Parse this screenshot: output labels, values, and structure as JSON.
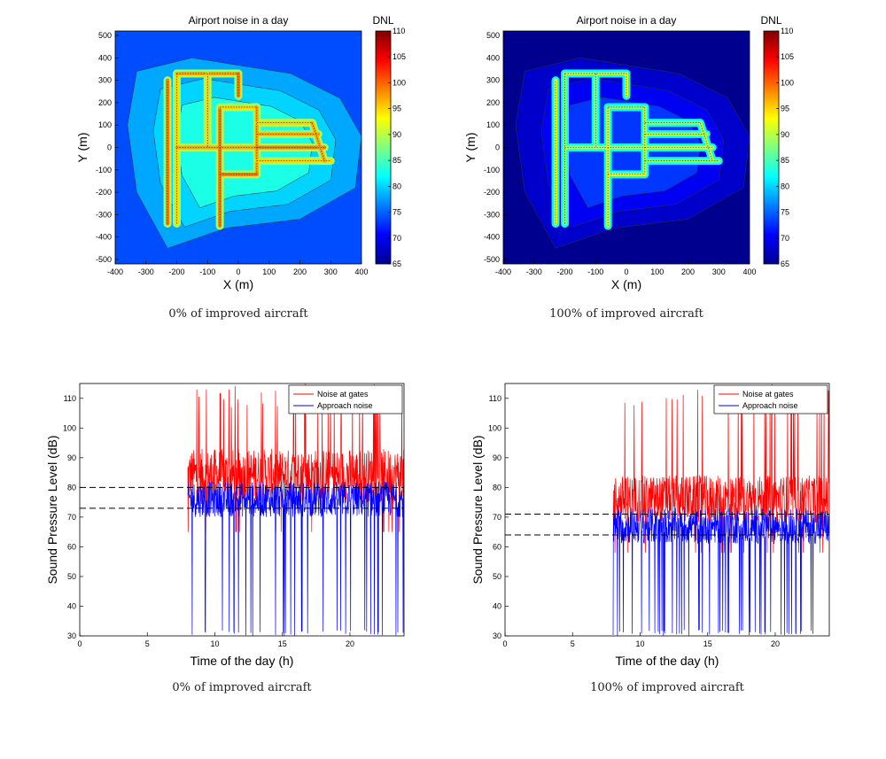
{
  "chart_data": [
    {
      "type": "heatmap",
      "title": "Airport noise in a day",
      "xlabel": "X (m)",
      "ylabel": "Y (m)",
      "xlim": [
        -400,
        400
      ],
      "ylim": [
        -520,
        520
      ],
      "xticks": [
        "-400",
        "-300",
        "-200",
        "-100",
        "0",
        "100",
        "200",
        "300",
        "400"
      ],
      "yticks": [
        "500",
        "400",
        "300",
        "200",
        "100",
        "0",
        "-100",
        "-200",
        "-300",
        "-400",
        "-500"
      ],
      "colorbar": {
        "label": "DNL",
        "min": 65,
        "max": 110,
        "ticks": [
          "110",
          "105",
          "100",
          "95",
          "90",
          "85",
          "80",
          "75",
          "70",
          "65"
        ]
      },
      "background_level_dnl": 80,
      "taxiway_level_dnl": 95,
      "caption": "0% of improved aircraft"
    },
    {
      "type": "heatmap",
      "title": "Airport noise in a day",
      "xlabel": "X (m)",
      "ylabel": "Y (m)",
      "xlim": [
        -400,
        400
      ],
      "ylim": [
        -520,
        520
      ],
      "xticks": [
        "-400",
        "-300",
        "-200",
        "-100",
        "0",
        "100",
        "200",
        "300",
        "400"
      ],
      "yticks": [
        "500",
        "400",
        "300",
        "200",
        "100",
        "0",
        "-100",
        "-200",
        "-300",
        "-400",
        "-500"
      ],
      "colorbar": {
        "label": "DNL",
        "min": 65,
        "max": 110,
        "ticks": [
          "110",
          "105",
          "100",
          "95",
          "90",
          "85",
          "80",
          "75",
          "70",
          "65"
        ]
      },
      "background_level_dnl": 70,
      "taxiway_level_dnl": 88,
      "caption": "100% of improved aircraft"
    },
    {
      "type": "line",
      "xlabel": "Time of the day (h)",
      "ylabel": "Sound Pressure Level (dB)",
      "xlim": [
        0,
        24
      ],
      "ylim": [
        30,
        115
      ],
      "xticks": [
        "0",
        "5",
        "10",
        "15",
        "20"
      ],
      "yticks": [
        "110",
        "100",
        "90",
        "80",
        "70",
        "60",
        "50",
        "40",
        "30"
      ],
      "series": [
        {
          "name": "Noise at gates",
          "color": "#ff0000",
          "start_h": 8,
          "end_h": 24,
          "mean_db": 84,
          "spread_db": 9
        },
        {
          "name": "Approach noise",
          "color": "#0000ff",
          "start_h": 8,
          "end_h": 24,
          "mean_db": 76,
          "spread_db": 6
        }
      ],
      "reference_lines_db": [
        80,
        73
      ],
      "caption": "0% of improved aircraft"
    },
    {
      "type": "line",
      "xlabel": "Time of the day (h)",
      "ylabel": "Sound Pressure Level (dB)",
      "xlim": [
        0,
        24
      ],
      "ylim": [
        30,
        115
      ],
      "xticks": [
        "0",
        "5",
        "10",
        "15",
        "20"
      ],
      "yticks": [
        "110",
        "100",
        "90",
        "80",
        "70",
        "60",
        "50",
        "40",
        "30"
      ],
      "series": [
        {
          "name": "Noise at gates",
          "color": "#ff0000",
          "start_h": 8,
          "end_h": 24,
          "mean_db": 76,
          "spread_db": 8
        },
        {
          "name": "Approach noise",
          "color": "#0000ff",
          "start_h": 8,
          "end_h": 24,
          "mean_db": 67,
          "spread_db": 6
        }
      ],
      "reference_lines_db": [
        71,
        64
      ],
      "caption": "100% of improved aircraft"
    }
  ]
}
